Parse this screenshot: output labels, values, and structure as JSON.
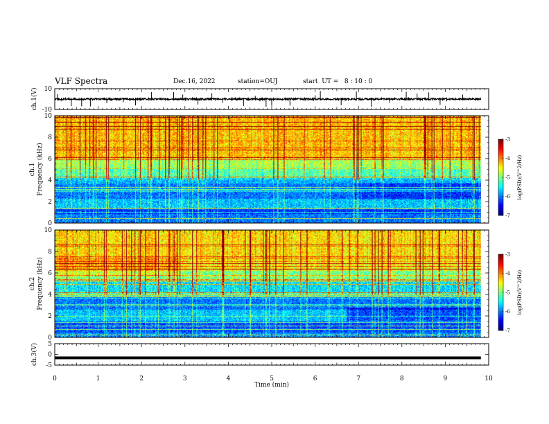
{
  "header": {
    "title": "VLF Spectra",
    "date": "Dec.16, 2022",
    "station": "station=OUJ",
    "start": "start  UT =   8 : 10 : 0"
  },
  "chart_data": [
    {
      "type": "line",
      "name": "ch1-waveform",
      "ylabel": "ch.1(V)",
      "ylim": [
        -10,
        10
      ],
      "y_ticks": [
        "10",
        "-10"
      ],
      "xlim": [
        0,
        10
      ],
      "baseline": 0,
      "spikes_min": [
        0.06,
        0.16,
        0.38,
        0.62,
        0.82,
        1.2,
        1.58,
        1.86,
        2.23,
        2.74,
        2.95,
        3.3,
        3.62,
        3.87,
        4.35,
        4.62,
        4.73,
        4.87,
        5.0,
        5.42,
        6.0,
        6.12,
        6.6,
        6.95,
        7.3,
        7.72,
        8.1,
        8.35,
        8.62,
        8.88,
        9.03,
        9.4
      ]
    },
    {
      "type": "heatmap",
      "name": "ch1-spectrogram",
      "ylabel_lines": [
        "ch.1",
        "Frequency (kHz)"
      ],
      "ylim": [
        0,
        10
      ],
      "y_ticks": [
        "0",
        "2",
        "4",
        "6",
        "8",
        "10"
      ],
      "xlim": [
        0,
        10
      ],
      "data_extent_min": 9.82,
      "colorbar": {
        "label": "log(PSD)(V^2/Hz)",
        "ticks": [
          "-3",
          "-4",
          "-5",
          "-6",
          "-7"
        ],
        "range": [
          -7,
          -3
        ]
      }
    },
    {
      "type": "heatmap",
      "name": "ch2-spectrogram",
      "ylabel_lines": [
        "ch.2",
        "Frequency (kHz)"
      ],
      "ylim": [
        0,
        10
      ],
      "y_ticks": [
        "0",
        "2",
        "4",
        "6",
        "8",
        "10"
      ],
      "xlim": [
        0,
        10
      ],
      "data_extent_min": 9.82,
      "colorbar": {
        "label": "log(PSD)(V^2/Hz)",
        "ticks": [
          "-3",
          "-4",
          "-5",
          "-6",
          "-7"
        ],
        "range": [
          -7,
          -3
        ]
      }
    },
    {
      "type": "line",
      "name": "ch3-waveform",
      "ylabel": "ch.3(V)",
      "ylim": [
        -5,
        5
      ],
      "y_ticks": [
        "5",
        "0",
        "-5"
      ],
      "xlim": [
        0,
        10
      ],
      "baseline": -1.6
    }
  ],
  "x_axis": {
    "label": "Time  (min)",
    "ticks": [
      "0",
      "1",
      "2",
      "3",
      "4",
      "5",
      "6",
      "7",
      "8",
      "9",
      "10"
    ]
  }
}
